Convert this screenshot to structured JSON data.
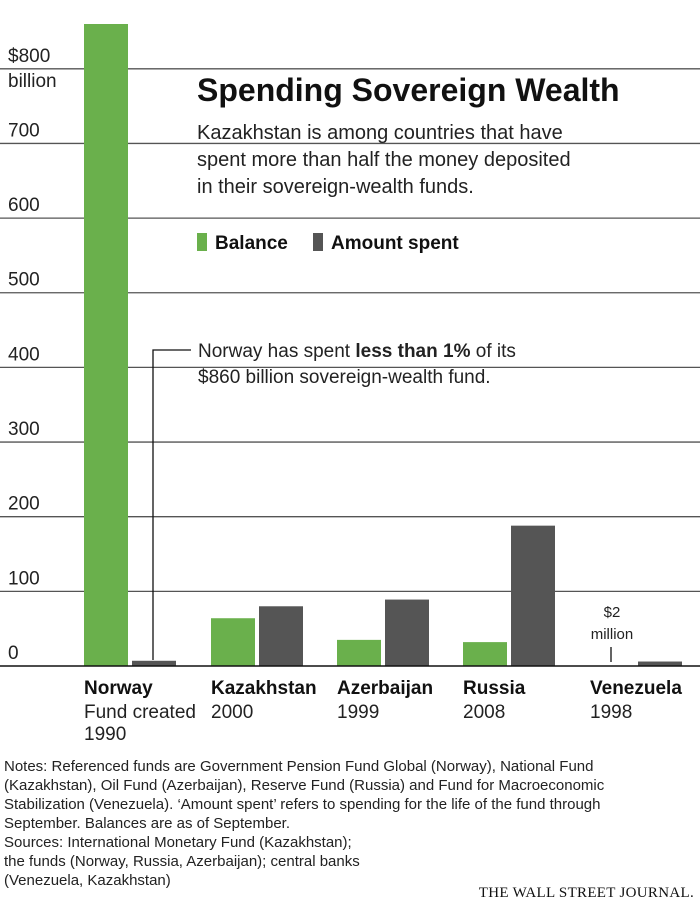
{
  "chart_data": {
    "type": "bar",
    "title": "Spending Sovereign Wealth",
    "subtitle_lines": [
      "Kazakhstan is among countries that have",
      "spent more than half the money deposited",
      "in their sovereign-wealth funds."
    ],
    "y_unit": "billion",
    "y_ticks": [
      "$800",
      "700",
      "600",
      "500",
      "400",
      "300",
      "200",
      "100",
      "0"
    ],
    "ylim": [
      0,
      860
    ],
    "grid": true,
    "legend_position": "top-right",
    "categories": [
      {
        "name": "Norway",
        "sub": [
          "Fund created",
          "1990"
        ]
      },
      {
        "name": "Kazakhstan",
        "sub": [
          "2000"
        ]
      },
      {
        "name": "Azerbaijan",
        "sub": [
          "1999"
        ]
      },
      {
        "name": "Russia",
        "sub": [
          "2008"
        ]
      },
      {
        "name": "Venezuela",
        "sub": [
          "1998"
        ]
      }
    ],
    "series": [
      {
        "name": "Balance",
        "color": "#6ab04c",
        "values": [
          860,
          64,
          35,
          32,
          0
        ]
      },
      {
        "name": "Amount spent",
        "color": "#555555",
        "values": [
          7,
          80,
          89,
          188,
          6
        ]
      }
    ],
    "annotations": {
      "norway_pre": "Norway has spent ",
      "norway_bold": "less than 1%",
      "norway_post": " of its",
      "norway_line2": "$860 billion sovereign-wealth fund.",
      "venezuela_value": "$2",
      "venezuela_unit": "million"
    }
  },
  "notes": [
    "Notes: Referenced funds are Government Pension Fund Global (Norway), National Fund",
    "(Kazakhstan), Oil Fund (Azerbaijan), Reserve Fund (Russia) and Fund for Macroeconomic",
    "Stabilization (Venezuela). ‘Amount spent’ refers to spending for the life of the fund through",
    "September. Balances are as of September.",
    "Sources: International Monetary Fund (Kazakhstan);",
    "the funds (Norway, Russia, Azerbaijan); central banks",
    "(Venezuela, Kazakhstan)"
  ],
  "source_logo": "THE WALL STREET JOURNAL."
}
